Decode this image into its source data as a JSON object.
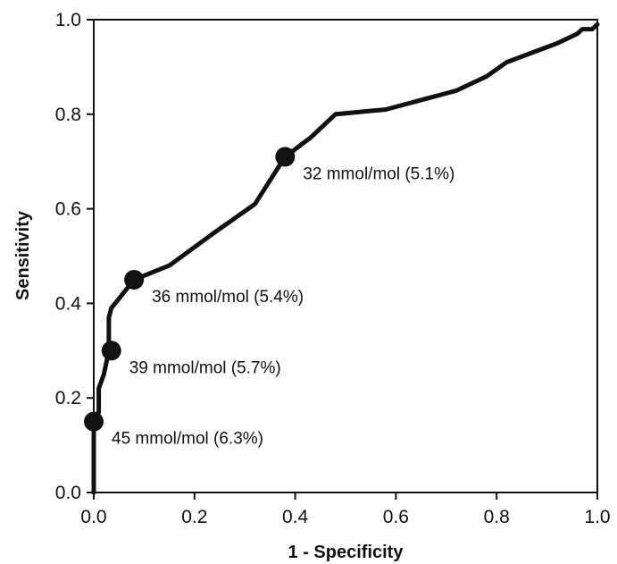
{
  "chart_data": {
    "type": "line",
    "title": "",
    "xlabel": "1 - Specificity",
    "ylabel": "Sensitivity",
    "xlim": [
      0.0,
      1.0
    ],
    "ylim": [
      0.0,
      1.0
    ],
    "xticks": [
      "0.0",
      "0.2",
      "0.4",
      "0.6",
      "0.8",
      "1.0"
    ],
    "yticks": [
      "0.0",
      "0.2",
      "0.4",
      "0.6",
      "0.8",
      "1.0"
    ],
    "grid": false,
    "legend": "none",
    "series": [
      {
        "x": [
          0.0,
          0.0,
          0.0,
          0.01,
          0.01,
          0.02,
          0.03,
          0.03,
          0.035,
          0.08,
          0.15,
          0.24,
          0.32,
          0.38,
          0.43,
          0.48,
          0.58,
          0.65,
          0.72,
          0.78,
          0.82,
          0.87,
          0.92,
          0.96,
          0.97,
          0.99,
          1.0
        ],
        "y": [
          0.0,
          0.1,
          0.15,
          0.17,
          0.22,
          0.25,
          0.3,
          0.37,
          0.39,
          0.45,
          0.48,
          0.55,
          0.61,
          0.71,
          0.75,
          0.8,
          0.81,
          0.83,
          0.85,
          0.88,
          0.91,
          0.93,
          0.95,
          0.97,
          0.98,
          0.98,
          0.99
        ]
      }
    ],
    "markers": [
      {
        "x": 0.0,
        "y": 0.15,
        "label": "45 mmol/mol (6.3%)"
      },
      {
        "x": 0.035,
        "y": 0.3,
        "label": "39 mmol/mol (5.7%)"
      },
      {
        "x": 0.08,
        "y": 0.45,
        "label": "36 mmol/mol (5.4%)"
      },
      {
        "x": 0.38,
        "y": 0.71,
        "label": "32 mmol/mol (5.1%)"
      }
    ]
  }
}
